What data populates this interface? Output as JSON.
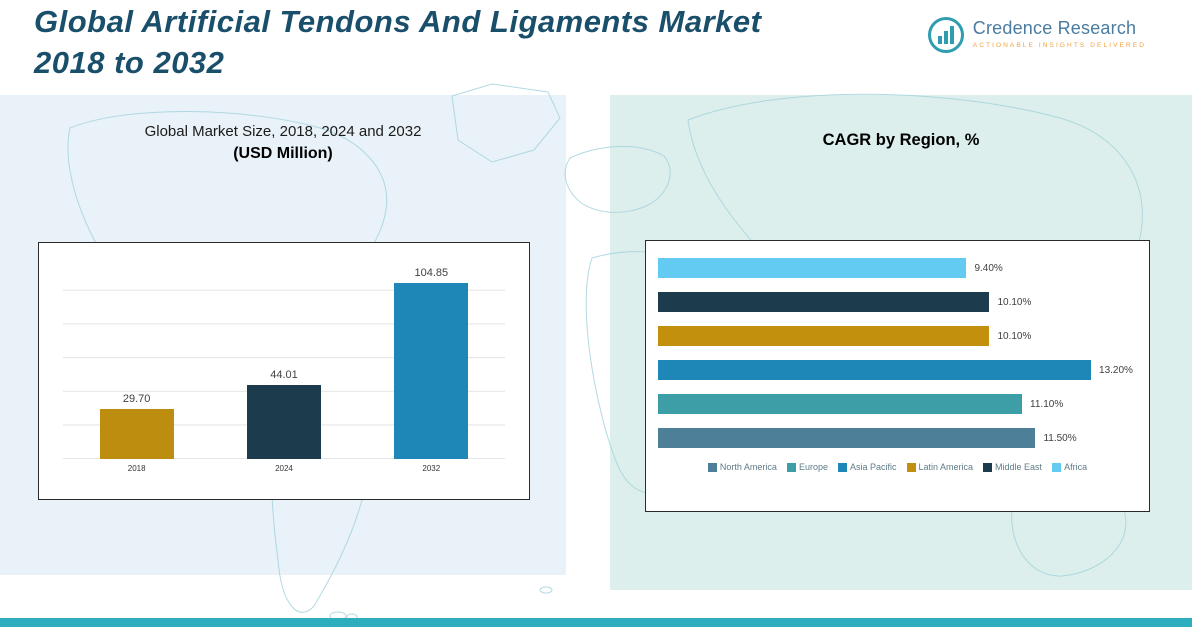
{
  "page": {
    "title_line1": "Global Artificial Tendons And Ligaments Market",
    "title_line2": "2018 to 2032"
  },
  "logo": {
    "name": "Credence Research",
    "tagline": "Actionable Insights Delivered",
    "accent_color": "#2f9db0",
    "tagline_color": "#f2a23c"
  },
  "chart_data": [
    {
      "type": "bar",
      "title_line1": "Global Market Size, 2018, 2024 and 2032",
      "title_line2": "(USD Million)",
      "categories": [
        "2018",
        "2024",
        "2032"
      ],
      "values": [
        29.7,
        44.01,
        104.85
      ],
      "value_labels": [
        "29.70",
        "44.01",
        "104.85"
      ],
      "colors": [
        "#bd8d10",
        "#1c3c4e",
        "#1e87b8"
      ],
      "xlabel": "",
      "ylabel": "",
      "ylim": [
        0,
        120
      ],
      "grid": true,
      "legend_position": "none"
    },
    {
      "type": "bar-horizontal",
      "title": "CAGR by Region, %",
      "categories": [
        "Africa",
        "Middle East",
        "Latin America",
        "Asia Pacific",
        "Europe",
        "North America"
      ],
      "values": [
        9.4,
        10.1,
        10.1,
        13.2,
        11.1,
        11.5
      ],
      "value_labels": [
        "9.40%",
        "10.10%",
        "10.10%",
        "13.20%",
        "11.10%",
        "11.50%"
      ],
      "colors": [
        "#63cbf1",
        "#1c3c4e",
        "#c3900e",
        "#1e87b8",
        "#3d9ea8",
        "#4e7f98"
      ],
      "xlim": [
        0,
        14.6
      ],
      "grid": false,
      "legend_position": "bottom",
      "legend": [
        {
          "label": "North America",
          "color": "#4e7f98"
        },
        {
          "label": "Europe",
          "color": "#3d9ea8"
        },
        {
          "label": "Asia Pacific",
          "color": "#1e87b8"
        },
        {
          "label": "Latin America",
          "color": "#c3900e"
        },
        {
          "label": "Middle East",
          "color": "#1c3c4e"
        },
        {
          "label": "Africa",
          "color": "#63cbf1"
        }
      ]
    }
  ]
}
